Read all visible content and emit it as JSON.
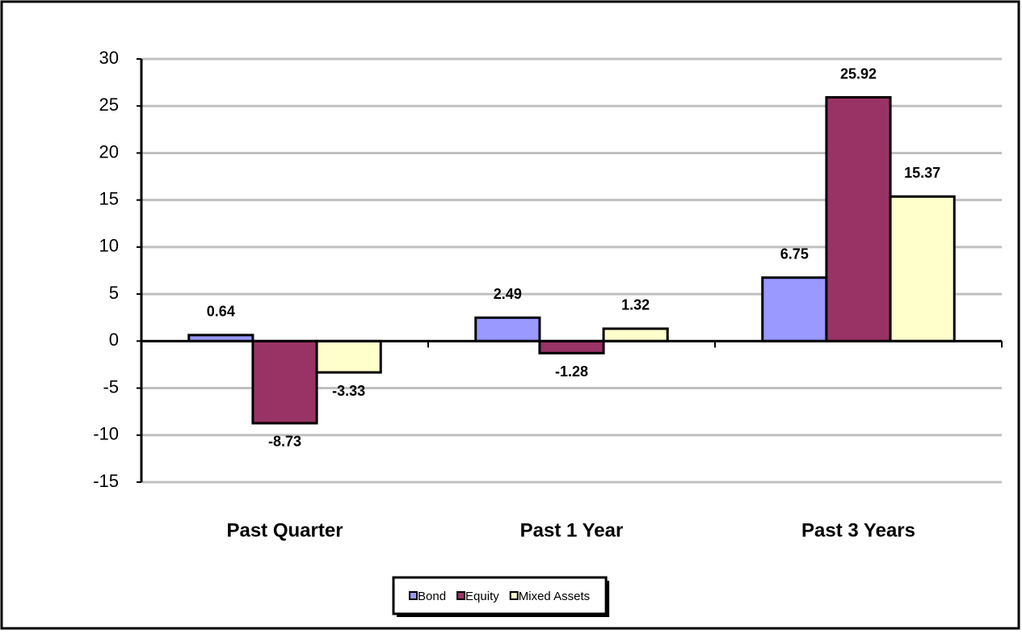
{
  "chart_data": {
    "type": "bar",
    "categories": [
      "Past Quarter",
      "Past 1 Year",
      "Past 3 Years"
    ],
    "series": [
      {
        "name": "Bond",
        "color": "#9999ff",
        "values": [
          0.64,
          2.49,
          6.75
        ]
      },
      {
        "name": "Equity",
        "color": "#993366",
        "values": [
          -8.73,
          -1.28,
          25.92
        ]
      },
      {
        "name": "Mixed Assets",
        "color": "#ffffcc",
        "values": [
          -3.33,
          1.32,
          15.37
        ]
      }
    ],
    "ylim": [
      -15,
      30
    ],
    "yticks": [
      -15,
      -10,
      -5,
      0,
      5,
      10,
      15,
      20,
      25,
      30
    ],
    "grid": true,
    "legend": "bottom"
  }
}
